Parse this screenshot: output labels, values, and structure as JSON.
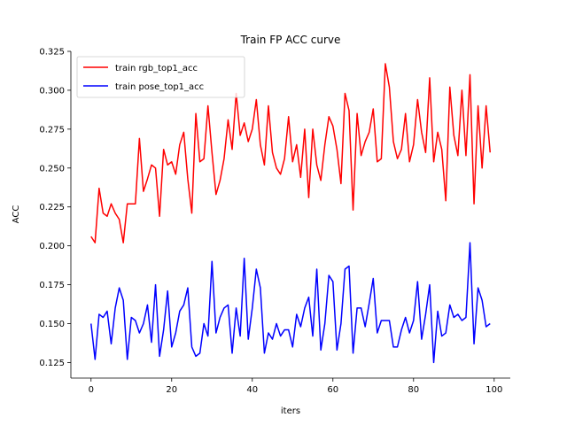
{
  "chart_data": {
    "type": "line",
    "title": "Train FP ACC curve",
    "xlabel": "iters",
    "ylabel": "ACC",
    "xlim": [
      -5,
      104
    ],
    "ylim": [
      0.115,
      0.325
    ],
    "xticks": [
      0,
      20,
      40,
      60,
      80,
      100
    ],
    "yticks": [
      0.125,
      0.15,
      0.175,
      0.2,
      0.225,
      0.25,
      0.275,
      0.3,
      0.325
    ],
    "ytick_labels": [
      "0.125",
      "0.150",
      "0.175",
      "0.200",
      "0.225",
      "0.250",
      "0.275",
      "0.300",
      "0.325"
    ],
    "grid": false,
    "legend_position": "top-left",
    "series": [
      {
        "name": "train rgb_top1_acc",
        "color": "#ff0000",
        "values": [
          0.206,
          0.202,
          0.237,
          0.221,
          0.219,
          0.227,
          0.221,
          0.217,
          0.202,
          0.227,
          0.227,
          0.227,
          0.269,
          0.235,
          0.243,
          0.252,
          0.25,
          0.219,
          0.262,
          0.252,
          0.254,
          0.246,
          0.265,
          0.273,
          0.243,
          0.221,
          0.285,
          0.254,
          0.256,
          0.29,
          0.26,
          0.233,
          0.242,
          0.256,
          0.281,
          0.262,
          0.298,
          0.271,
          0.279,
          0.267,
          0.275,
          0.294,
          0.265,
          0.252,
          0.29,
          0.26,
          0.25,
          0.246,
          0.256,
          0.283,
          0.254,
          0.265,
          0.244,
          0.275,
          0.231,
          0.275,
          0.252,
          0.242,
          0.265,
          0.283,
          0.277,
          0.262,
          0.24,
          0.298,
          0.287,
          0.223,
          0.285,
          0.258,
          0.267,
          0.273,
          0.288,
          0.254,
          0.256,
          0.317,
          0.302,
          0.267,
          0.256,
          0.262,
          0.285,
          0.254,
          0.265,
          0.294,
          0.273,
          0.26,
          0.308,
          0.254,
          0.273,
          0.262,
          0.229,
          0.302,
          0.271,
          0.258,
          0.3,
          0.258,
          0.31,
          0.227,
          0.29,
          0.25,
          0.29,
          0.26
        ]
      },
      {
        "name": "train pose_top1_acc",
        "color": "#0000ff",
        "values": [
          0.15,
          0.127,
          0.156,
          0.154,
          0.158,
          0.137,
          0.16,
          0.173,
          0.165,
          0.127,
          0.154,
          0.152,
          0.144,
          0.15,
          0.162,
          0.138,
          0.175,
          0.129,
          0.146,
          0.171,
          0.135,
          0.144,
          0.158,
          0.162,
          0.173,
          0.135,
          0.129,
          0.131,
          0.15,
          0.142,
          0.19,
          0.144,
          0.154,
          0.16,
          0.162,
          0.131,
          0.16,
          0.142,
          0.192,
          0.14,
          0.16,
          0.185,
          0.173,
          0.131,
          0.144,
          0.14,
          0.15,
          0.142,
          0.146,
          0.146,
          0.135,
          0.156,
          0.148,
          0.16,
          0.167,
          0.142,
          0.185,
          0.133,
          0.15,
          0.181,
          0.177,
          0.133,
          0.15,
          0.185,
          0.187,
          0.131,
          0.16,
          0.16,
          0.148,
          0.163,
          0.179,
          0.144,
          0.152,
          0.152,
          0.152,
          0.135,
          0.135,
          0.146,
          0.154,
          0.144,
          0.152,
          0.177,
          0.14,
          0.156,
          0.175,
          0.125,
          0.158,
          0.142,
          0.144,
          0.162,
          0.154,
          0.156,
          0.152,
          0.154,
          0.202,
          0.137,
          0.173,
          0.165,
          0.148,
          0.15
        ]
      }
    ]
  }
}
